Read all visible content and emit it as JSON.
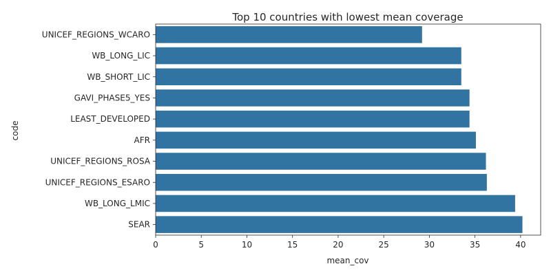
{
  "chart_data": {
    "type": "bar",
    "orientation": "horizontal",
    "title": "Top 10 countries with lowest mean coverage",
    "xlabel": "mean_cov",
    "ylabel": "code",
    "categories": [
      "UNICEF_REGIONS_WCARO",
      "WB_LONG_LIC",
      "WB_SHORT_LIC",
      "GAVI_PHASE5_YES",
      "LEAST_DEVELOPED",
      "AFR",
      "UNICEF_REGIONS_ROSA",
      "UNICEF_REGIONS_ESARO",
      "WB_LONG_LMIC",
      "SEAR"
    ],
    "values": [
      29.2,
      33.5,
      33.5,
      34.4,
      34.4,
      35.1,
      36.2,
      36.3,
      39.4,
      40.2
    ],
    "xlim": [
      0,
      42.2
    ],
    "xticks": [
      0,
      5,
      10,
      15,
      20,
      25,
      30,
      35,
      40
    ],
    "grid": false,
    "bar_color": "#3274a1"
  }
}
